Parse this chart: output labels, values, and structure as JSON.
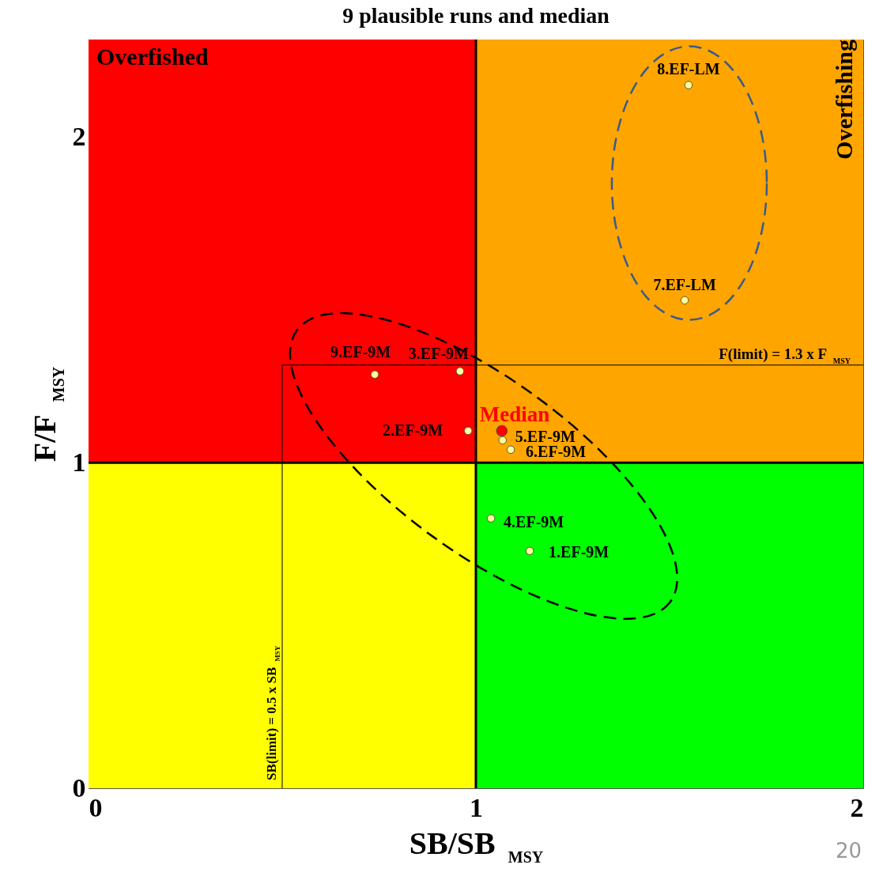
{
  "chart_data": {
    "type": "scatter",
    "title": "9 plausible runs and median",
    "xlabel": "SB/SB$_{MSY}$",
    "ylabel": "F/F$_{MSY}$",
    "xlim": [
      0,
      2
    ],
    "ylim": [
      0,
      2.3
    ],
    "xticks": [
      0,
      1,
      2
    ],
    "yticks": [
      0,
      1,
      2
    ],
    "grid": false,
    "marker": "circle",
    "series": [
      {
        "color": "#ffff99",
        "x": [
          1.139,
          0.98,
          0.959,
          1.039,
          1.069,
          1.09,
          1.539,
          1.549,
          0.739
        ],
        "values": [
          0.729,
          1.098,
          1.281,
          0.829,
          1.069,
          1.04,
          1.499,
          2.16,
          1.271
        ]
      },
      {
        "name": "Median",
        "color": "#ff0000",
        "x": [
          1.067
        ],
        "values": [
          1.098
        ]
      }
    ],
    "ref_lines": [
      {
        "axis": "x",
        "value": 1
      },
      {
        "axis": "y",
        "value": 1
      },
      {
        "axis": "y",
        "value": 1.3,
        "label": "F(limit) = 1.3 x F$_{MSY}$"
      },
      {
        "axis": "x",
        "value": 0.5,
        "label": "SB(limit) = 0.5 x SB$_{MSY}$"
      }
    ],
    "annotations": [
      "Overfished",
      "Overfishing",
      "20",
      {
        "text": "1.EF-9M",
        "x": 1.139,
        "y": 0.729
      },
      {
        "text": "2.EF-9M",
        "x": 0.98,
        "y": 1.098
      },
      {
        "text": "3.EF-9M",
        "x": 0.959,
        "y": 1.281
      },
      {
        "text": "4.EF-9M",
        "x": 1.039,
        "y": 0.829
      },
      {
        "text": "5.EF-9M",
        "x": 1.069,
        "y": 1.069
      },
      {
        "text": "6.EF-9M",
        "x": 1.09,
        "y": 1.04
      },
      {
        "text": "7.EF-LM",
        "x": 1.539,
        "y": 1.499
      },
      {
        "text": "8.EF-LM",
        "x": 1.549,
        "y": 2.16
      },
      {
        "text": "9.EF-9M",
        "x": 0.739,
        "y": 1.271
      }
    ]
  }
}
